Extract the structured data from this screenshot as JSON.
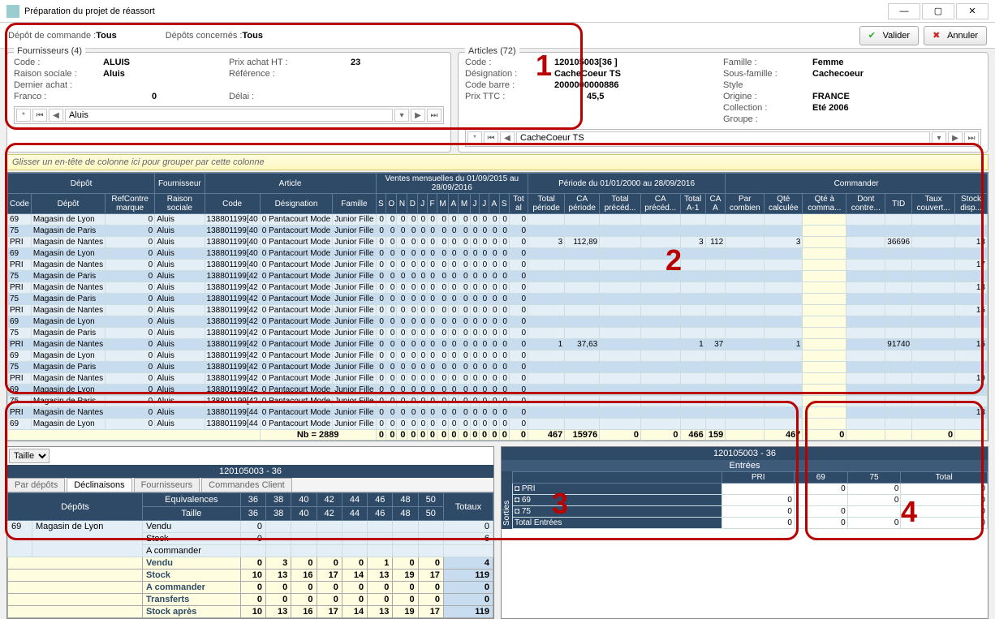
{
  "window": {
    "title": "Préparation du projet de réassort"
  },
  "buttons": {
    "validate": "Valider",
    "cancel": "Annuler"
  },
  "filters": {
    "depot_cmd_label": "Dépôt de commande :",
    "depot_cmd_val": "Tous",
    "depots_conc_label": "Dépôts concernés :",
    "depots_conc_val": "Tous"
  },
  "supplier": {
    "legend": "Fournisseurs (4)",
    "code_l": "Code :",
    "code": "ALUIS",
    "rs_l": "Raison sociale :",
    "rs": "Aluis",
    "da_l": "Dernier achat :",
    "da": "",
    "franco_l": "Franco :",
    "franco": "0",
    "pra_l": "Prix achat HT :",
    "pra": "23",
    "ref_l": "Référence :",
    "ref": "",
    "delai_l": "Délai :",
    "delai": "",
    "nav": "Aluis"
  },
  "article": {
    "legend": "Articles (72)",
    "code_l": "Code :",
    "code": "120105003[36    ]",
    "des_l": "Désignation :",
    "des": "CacheCoeur TS",
    "cb_l": "Code barre :",
    "cb": "2000000000886",
    "pttc_l": "Prix TTC :",
    "pttc": "45,5",
    "fam_l": "Famille :",
    "fam": "Femme",
    "sfam_l": "Sous-famille :",
    "sfam": "Cachecoeur",
    "style_l": "Style",
    "style": "",
    "orig_l": "Origine :",
    "orig": "FRANCE",
    "coll_l": "Collection :",
    "coll": "Eté 2006",
    "grp_l": "Groupe :",
    "grp": "",
    "nav": "CacheCoeur TS"
  },
  "groupbar": "Glisser un en-tête de colonne ici pour grouper par cette colonne",
  "gridHead": {
    "g1": "Dépôt",
    "g2": "Fournisseur",
    "g3": "Article",
    "g4": "Ventes mensuelles du 01/09/2015 au 28/09/2016",
    "g5": "Période du 01/01/2000 au 28/09/2016",
    "g6": "Commander",
    "c": [
      "Code",
      "Dépôt",
      "RefContre marque",
      "Raison sociale",
      "Code",
      "Désignation",
      "Famille",
      "S",
      "O",
      "N",
      "D",
      "J",
      "F",
      "M",
      "A",
      "M",
      "J",
      "J",
      "A",
      "S",
      "Tot al",
      "Total période",
      "CA période",
      "Total précéd...",
      "CA précéd...",
      "Total A-1",
      "CA A",
      "Par combien",
      "Qté calculée",
      "Qté à comma...",
      "Dont contre...",
      "TID",
      "Taux couvert...",
      "Stock disp..."
    ]
  },
  "rows": [
    {
      "code": "69",
      "depot": "Magasin de Lyon",
      "rs": "Aluis",
      "acode": "138801199[40",
      "des": "Pantacourt Mode",
      "fam": "Junior Fille"
    },
    {
      "code": "75",
      "depot": "Magasin de Paris",
      "rs": "Aluis",
      "acode": "138801199[40",
      "des": "Pantacourt Mode",
      "fam": "Junior Fille"
    },
    {
      "code": "PRI",
      "depot": "Magasin de Nantes",
      "rs": "Aluis",
      "acode": "138801199[40",
      "des": "Pantacourt Mode",
      "fam": "Junior Fille",
      "tp": "3",
      "cap": "112,89",
      "ta1": "3",
      "caa": "112",
      "qc": "3",
      "tid": "36696",
      "sd": "18"
    },
    {
      "code": "69",
      "depot": "Magasin de Lyon",
      "rs": "Aluis",
      "acode": "138801199[40",
      "des": "Pantacourt Mode",
      "fam": "Junior Fille"
    },
    {
      "code": "PRI",
      "depot": "Magasin de Nantes",
      "rs": "Aluis",
      "acode": "138801199[40",
      "des": "Pantacourt Mode",
      "fam": "Junior Fille",
      "sd": "17"
    },
    {
      "code": "75",
      "depot": "Magasin de Paris",
      "rs": "Aluis",
      "acode": "138801199[42",
      "des": "Pantacourt Mode",
      "fam": "Junior Fille"
    },
    {
      "code": "PRI",
      "depot": "Magasin de Nantes",
      "rs": "Aluis",
      "acode": "138801199[42",
      "des": "Pantacourt Mode",
      "fam": "Junior Fille",
      "sd": "13"
    },
    {
      "code": "75",
      "depot": "Magasin de Paris",
      "rs": "Aluis",
      "acode": "138801199[42",
      "des": "Pantacourt Mode",
      "fam": "Junior Fille"
    },
    {
      "code": "PRI",
      "depot": "Magasin de Nantes",
      "rs": "Aluis",
      "acode": "138801199[42",
      "des": "Pantacourt Mode",
      "fam": "Junior Fille",
      "sd": "15"
    },
    {
      "code": "69",
      "depot": "Magasin de Lyon",
      "rs": "Aluis",
      "acode": "138801199[42",
      "des": "Pantacourt Mode",
      "fam": "Junior Fille"
    },
    {
      "code": "75",
      "depot": "Magasin de Paris",
      "rs": "Aluis",
      "acode": "138801199[42",
      "des": "Pantacourt Mode",
      "fam": "Junior Fille"
    },
    {
      "code": "PRI",
      "depot": "Magasin de Nantes",
      "rs": "Aluis",
      "acode": "138801199[42",
      "des": "Pantacourt Mode",
      "fam": "Junior Fille",
      "tp": "1",
      "cap": "37,63",
      "ta1": "1",
      "caa": "37",
      "qc": "1",
      "tid": "91740",
      "sd": "15"
    },
    {
      "code": "69",
      "depot": "Magasin de Lyon",
      "rs": "Aluis",
      "acode": "138801199[42",
      "des": "Pantacourt Mode",
      "fam": "Junior Fille"
    },
    {
      "code": "75",
      "depot": "Magasin de Paris",
      "rs": "Aluis",
      "acode": "138801199[42",
      "des": "Pantacourt Mode",
      "fam": "Junior Fille"
    },
    {
      "code": "PRI",
      "depot": "Magasin de Nantes",
      "rs": "Aluis",
      "acode": "138801199[42",
      "des": "Pantacourt Mode",
      "fam": "Junior Fille",
      "sd": "19"
    },
    {
      "code": "69",
      "depot": "Magasin de Lyon",
      "rs": "Aluis",
      "acode": "138801199[42",
      "des": "Pantacourt Mode",
      "fam": "Junior Fille"
    },
    {
      "code": "75",
      "depot": "Magasin de Paris",
      "rs": "Aluis",
      "acode": "138801199[42",
      "des": "Pantacourt Mode",
      "fam": "Junior Fille"
    },
    {
      "code": "PRI",
      "depot": "Magasin de Nantes",
      "rs": "Aluis",
      "acode": "138801199[44",
      "des": "Pantacourt Mode",
      "fam": "Junior Fille",
      "sd": "13"
    },
    {
      "code": "69",
      "depot": "Magasin de Lyon",
      "rs": "Aluis",
      "acode": "138801199[44",
      "des": "Pantacourt Mode",
      "fam": "Junior Fille"
    }
  ],
  "totals": {
    "nb": "Nb = 2889",
    "t": [
      "0",
      "0",
      "0",
      "0",
      "0",
      "0",
      "0",
      "0",
      "0",
      "0",
      "0",
      "0",
      "0",
      "0",
      "467",
      "15976",
      "0",
      "0",
      "466",
      "159",
      "",
      "467",
      "0",
      "",
      "",
      "0"
    ]
  },
  "panel3": {
    "title": "120105003 - 36",
    "dropdown": "Taille",
    "tabs": [
      "Par dépôts",
      "Déclinaisons",
      "Fournisseurs",
      "Commandes Client"
    ],
    "hdr": {
      "depots": "Dépôts",
      "equiv": "Equivalences",
      "taille": "Taille",
      "totaux": "Totaux"
    },
    "sizes": [
      "36",
      "38",
      "40",
      "42",
      "44",
      "46",
      "48",
      "50"
    ],
    "dep_code": "69",
    "dep_name": "Magasin de Lyon",
    "drows": [
      {
        "l": "Vendu",
        "v": [
          "0",
          "",
          "",
          "",
          "",
          "",
          "",
          ""
        ],
        "t": "0"
      },
      {
        "l": "Stock",
        "v": [
          "0",
          "",
          "",
          "",
          "",
          "",
          "",
          ""
        ],
        "t": "6"
      },
      {
        "l": "A commander",
        "v": [
          "",
          "",
          "",
          "",
          "",
          "",
          "",
          ""
        ],
        "t": ""
      }
    ],
    "srows": [
      {
        "l": "Vendu",
        "v": [
          "0",
          "3",
          "0",
          "0",
          "0",
          "1",
          "0",
          "0"
        ],
        "t": "4"
      },
      {
        "l": "Stock",
        "v": [
          "10",
          "13",
          "16",
          "17",
          "14",
          "13",
          "19",
          "17"
        ],
        "t": "119"
      },
      {
        "l": "A commander",
        "v": [
          "0",
          "0",
          "0",
          "0",
          "0",
          "0",
          "0",
          "0"
        ],
        "t": "0"
      },
      {
        "l": "Transferts",
        "v": [
          "0",
          "0",
          "0",
          "0",
          "0",
          "0",
          "0",
          "0"
        ],
        "t": "0"
      },
      {
        "l": "Stock après",
        "v": [
          "10",
          "13",
          "16",
          "17",
          "14",
          "13",
          "19",
          "17"
        ],
        "t": "119"
      }
    ]
  },
  "panel4": {
    "title": "120105003 - 36",
    "sub": "Entrées",
    "cols": [
      "",
      "PRI",
      "69",
      "75",
      "Total"
    ],
    "rows": [
      {
        "l": "◘ PRI",
        "v": [
          "",
          "0",
          "0",
          "0"
        ]
      },
      {
        "l": "◘ 69",
        "v": [
          "0",
          "",
          "0",
          "0"
        ]
      },
      {
        "l": "◘ 75",
        "v": [
          "0",
          "0",
          "",
          "0"
        ]
      },
      {
        "l": "Total Entrées",
        "v": [
          "0",
          "0",
          "0",
          "0"
        ]
      }
    ],
    "side": "Sorties"
  },
  "annotations": {
    "n1": "1",
    "n2": "2",
    "n3": "3",
    "n4": "4"
  }
}
